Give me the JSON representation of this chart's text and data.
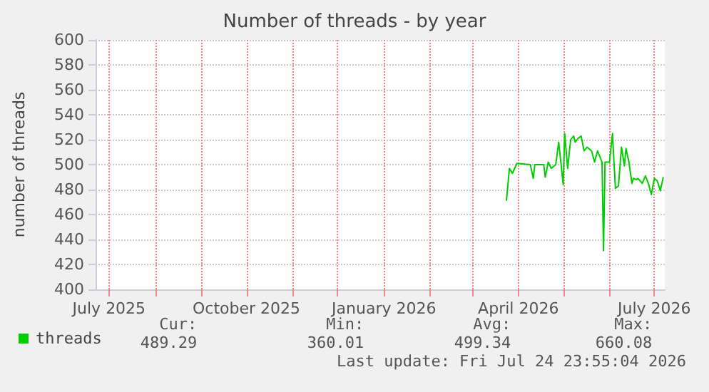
{
  "chart_data": {
    "type": "line",
    "title": "Number of threads - by year",
    "ylabel": "number of threads",
    "xlim": [
      "2025-06-22",
      "2026-07-08"
    ],
    "xticks": [
      {
        "value": "2025-07-01",
        "label": "July 2025"
      },
      {
        "value": "2025-08-01",
        "label": null
      },
      {
        "value": "2025-09-01",
        "label": null
      },
      {
        "value": "2025-10-01",
        "label": "October 2025"
      },
      {
        "value": "2025-11-01",
        "label": null
      },
      {
        "value": "2025-12-01",
        "label": null
      },
      {
        "value": "2026-01-01",
        "label": "January 2026"
      },
      {
        "value": "2026-02-01",
        "label": null
      },
      {
        "value": "2026-03-01",
        "label": null
      },
      {
        "value": "2026-04-01",
        "label": "April 2026"
      },
      {
        "value": "2026-05-01",
        "label": null
      },
      {
        "value": "2026-06-01",
        "label": null
      },
      {
        "value": "2026-07-01",
        "label": "July 2026"
      }
    ],
    "ylim": [
      400,
      600
    ],
    "yticks": [
      400,
      420,
      440,
      460,
      480,
      500,
      520,
      540,
      560,
      580,
      600
    ],
    "grid": true,
    "legend": "bottom left",
    "marker": "none",
    "line_style": "solid",
    "series": [
      {
        "name": "threads",
        "color": "#00cc00",
        "x": [
          "2026-03-24",
          "2026-03-26",
          "2026-03-28",
          "2026-03-31",
          "2026-04-09",
          "2026-04-11",
          "2026-04-12",
          "2026-04-18",
          "2026-04-19",
          "2026-04-21",
          "2026-04-23",
          "2026-04-26",
          "2026-04-28",
          "2026-05-01",
          "2026-05-02",
          "2026-05-04",
          "2026-05-06",
          "2026-05-08",
          "2026-05-09",
          "2026-05-11",
          "2026-05-13",
          "2026-05-15",
          "2026-05-17",
          "2026-05-20",
          "2026-05-22",
          "2026-05-24",
          "2026-05-27",
          "2026-05-28",
          "2026-05-29",
          "2026-06-01",
          "2026-06-03",
          "2026-06-04",
          "2026-06-05",
          "2026-06-07",
          "2026-06-09",
          "2026-06-11",
          "2026-06-12",
          "2026-06-14",
          "2026-06-16",
          "2026-06-17",
          "2026-06-19",
          "2026-06-20",
          "2026-06-23",
          "2026-06-25",
          "2026-06-27",
          "2026-06-29",
          "2026-07-01",
          "2026-07-03",
          "2026-07-05",
          "2026-07-07"
        ],
        "values": [
          471,
          497,
          493,
          501,
          500,
          489,
          500,
          500,
          490,
          502,
          497,
          500,
          518,
          484,
          525,
          497,
          520,
          523,
          518,
          521,
          523,
          511,
          514,
          511,
          502,
          511,
          502,
          431,
          502,
          502,
          525,
          502,
          481,
          483,
          514,
          499,
          513,
          502,
          485,
          489,
          488,
          489,
          485,
          491,
          485,
          476,
          489,
          487,
          479,
          490
        ]
      }
    ],
    "annotations": [
      "Cur:",
      "Min:",
      "Avg:",
      "Max:",
      "489.29",
      "360.01",
      "499.34",
      "660.08",
      "Last update: Fri Jul 24 23:55:04 2026"
    ]
  }
}
